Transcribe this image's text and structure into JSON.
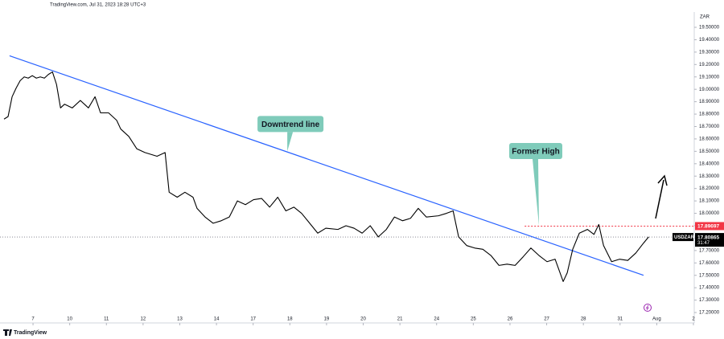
{
  "chart_data": {
    "type": "line",
    "source": "TradingView.com, Jul 31, 2023 18:28 UTC+3",
    "currency": "ZAR",
    "watermark": "TradingView",
    "countdown": "31:47",
    "xlim": [
      -0.9,
      18.0
    ],
    "ylim": [
      17.129,
      19.623
    ],
    "xticks": [
      {
        "value": 0,
        "label": "7"
      },
      {
        "value": 1,
        "label": "10"
      },
      {
        "value": 2,
        "label": "11"
      },
      {
        "value": 3,
        "label": "12"
      },
      {
        "value": 4,
        "label": "13"
      },
      {
        "value": 5,
        "label": "14"
      },
      {
        "value": 6,
        "label": "17"
      },
      {
        "value": 7,
        "label": "18"
      },
      {
        "value": 8,
        "label": "19"
      },
      {
        "value": 9,
        "label": "20"
      },
      {
        "value": 10,
        "label": "21"
      },
      {
        "value": 11,
        "label": "24"
      },
      {
        "value": 12,
        "label": "25"
      },
      {
        "value": 13,
        "label": "26"
      },
      {
        "value": 14,
        "label": "27"
      },
      {
        "value": 15,
        "label": "28"
      },
      {
        "value": 16,
        "label": "31"
      },
      {
        "value": 17,
        "label": "Aug"
      },
      {
        "value": 18,
        "label": "2"
      }
    ],
    "yticks": [
      {
        "value": 17.2,
        "label": "17.20000"
      },
      {
        "value": 17.3,
        "label": "17.30000"
      },
      {
        "value": 17.4,
        "label": "17.40000"
      },
      {
        "value": 17.5,
        "label": "17.50000"
      },
      {
        "value": 17.6,
        "label": "17.60000"
      },
      {
        "value": 17.7,
        "label": "17.70000"
      },
      {
        "value": 17.8,
        "label": "17.80000"
      },
      {
        "value": 17.9,
        "label": "17.90000"
      },
      {
        "value": 18.0,
        "label": "18.00000"
      },
      {
        "value": 18.1,
        "label": "18.10000"
      },
      {
        "value": 18.2,
        "label": "18.20000"
      },
      {
        "value": 18.3,
        "label": "18.30000"
      },
      {
        "value": 18.4,
        "label": "18.40000"
      },
      {
        "value": 18.5,
        "label": "18.50000"
      },
      {
        "value": 18.6,
        "label": "18.60000"
      },
      {
        "value": 18.7,
        "label": "18.70000"
      },
      {
        "value": 18.8,
        "label": "18.80000"
      },
      {
        "value": 18.9,
        "label": "18.90000"
      },
      {
        "value": 19.0,
        "label": "19.00000"
      },
      {
        "value": 19.1,
        "label": "19.10000"
      },
      {
        "value": 19.2,
        "label": "19.20000"
      },
      {
        "value": 19.3,
        "label": "19.30000"
      },
      {
        "value": 19.4,
        "label": "19.40000"
      },
      {
        "value": 19.5,
        "label": "19.50000"
      }
    ],
    "x": [
      -0.79,
      -0.68,
      -0.57,
      -0.46,
      -0.35,
      -0.24,
      -0.13,
      -0.02,
      0.09,
      0.2,
      0.31,
      0.42,
      0.53,
      0.64,
      0.75,
      0.86,
      1.07,
      1.29,
      1.4,
      1.51,
      1.69,
      1.84,
      2.06,
      2.28,
      2.39,
      2.61,
      2.83,
      3.05,
      3.38,
      3.6,
      3.71,
      3.93,
      4.14,
      4.36,
      4.47,
      4.69,
      4.91,
      5.13,
      5.35,
      5.57,
      5.79,
      6.01,
      6.23,
      6.45,
      6.67,
      6.89,
      7.11,
      7.32,
      7.54,
      7.76,
      7.98,
      8.31,
      8.53,
      8.75,
      8.97,
      9.19,
      9.41,
      9.63,
      9.85,
      10.07,
      10.29,
      10.5,
      10.72,
      11.05,
      11.27,
      11.45,
      11.6,
      11.82,
      12.04,
      12.26,
      12.48,
      12.7,
      12.92,
      13.14,
      13.36,
      13.57,
      13.79,
      14.01,
      14.23,
      14.45,
      14.56,
      14.71,
      14.89,
      15.11,
      15.29,
      15.42,
      15.55,
      15.77,
      15.99,
      16.21,
      16.43,
      16.64,
      16.78
    ],
    "series": [
      {
        "name": "USDZAR",
        "color": "#000000",
        "values": [
          18.76,
          18.78,
          18.94,
          19.01,
          19.07,
          19.1,
          19.09,
          19.11,
          19.09,
          19.1,
          19.09,
          19.12,
          19.14,
          19.04,
          18.85,
          18.88,
          18.85,
          18.91,
          18.88,
          18.85,
          18.94,
          18.81,
          18.81,
          18.75,
          18.68,
          18.62,
          18.52,
          18.49,
          18.46,
          18.49,
          18.17,
          18.13,
          18.17,
          18.13,
          18.04,
          17.97,
          17.92,
          17.94,
          17.97,
          18.1,
          18.07,
          18.11,
          18.12,
          18.05,
          18.13,
          18.02,
          18.05,
          18.0,
          17.92,
          17.84,
          17.88,
          17.87,
          17.9,
          17.88,
          17.84,
          17.9,
          17.81,
          17.87,
          17.97,
          17.94,
          17.96,
          18.04,
          17.97,
          17.98,
          18.0,
          18.02,
          17.81,
          17.74,
          17.72,
          17.71,
          17.66,
          17.58,
          17.59,
          17.58,
          17.65,
          17.72,
          17.66,
          17.61,
          17.63,
          17.45,
          17.52,
          17.71,
          17.84,
          17.87,
          17.83,
          17.91,
          17.74,
          17.61,
          17.63,
          17.62,
          17.68,
          17.76,
          17.81
        ]
      }
    ],
    "last_price": 17.80865,
    "trendline": {
      "color": "#2962ff",
      "x": [
        -0.64,
        16.64
      ],
      "values": [
        19.27,
        17.5
      ]
    },
    "former_high": {
      "color": "#f23645",
      "x_start": 13.4,
      "value": 17.89697
    },
    "annotations": [
      {
        "text": "Downtrend line",
        "x": 6.93,
        "value": 18.5
      },
      {
        "text": "Former High",
        "x": 13.79,
        "value": 17.9
      }
    ]
  }
}
